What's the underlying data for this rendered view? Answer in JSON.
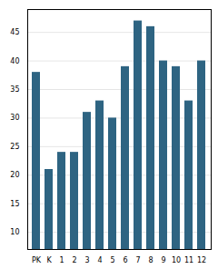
{
  "chart_data": {
    "type": "bar",
    "categories": [
      "PK",
      "K",
      "1",
      "2",
      "3",
      "4",
      "5",
      "6",
      "7",
      "8",
      "9",
      "10",
      "11",
      "12"
    ],
    "values": [
      38,
      21,
      24,
      24,
      31,
      33,
      30,
      39,
      47,
      46,
      40,
      39,
      33,
      40
    ],
    "color": "#2e6482",
    "ylim": [
      7,
      49
    ],
    "yticks": [
      10,
      15,
      20,
      25,
      30,
      35,
      40,
      45
    ],
    "grid": true
  }
}
